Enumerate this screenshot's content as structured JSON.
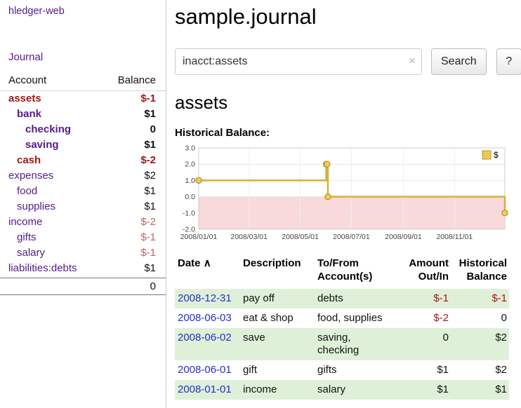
{
  "app": {
    "title": "hledger-web",
    "nav_journal": "Journal"
  },
  "sidebar": {
    "headers": {
      "account": "Account",
      "balance": "Balance"
    },
    "accounts": [
      {
        "name": "assets",
        "balance": "$-1",
        "indent": 0,
        "selected": true,
        "negative": true
      },
      {
        "name": "bank",
        "balance": "$1",
        "indent": 1,
        "selected": true,
        "negative": false
      },
      {
        "name": "checking",
        "balance": "0",
        "indent": 2,
        "selected": true,
        "negative": false
      },
      {
        "name": "saving",
        "balance": "$1",
        "indent": 2,
        "selected": true,
        "negative": false
      },
      {
        "name": "cash",
        "balance": "$-2",
        "indent": 1,
        "selected": true,
        "negative": true
      },
      {
        "name": "expenses",
        "balance": "$2",
        "indent": 0,
        "selected": false,
        "negative": false
      },
      {
        "name": "food",
        "balance": "$1",
        "indent": 1,
        "selected": false,
        "negative": false
      },
      {
        "name": "supplies",
        "balance": "$1",
        "indent": 1,
        "selected": false,
        "negative": false
      },
      {
        "name": "income",
        "balance": "$-2",
        "indent": 0,
        "selected": false,
        "negative": true
      },
      {
        "name": "gifts",
        "balance": "$-1",
        "indent": 1,
        "selected": false,
        "negative": true
      },
      {
        "name": "salary",
        "balance": "$-1",
        "indent": 1,
        "selected": false,
        "negative": true
      },
      {
        "name": "liabilities:debts",
        "balance": "$1",
        "indent": 0,
        "selected": false,
        "negative": false
      }
    ],
    "total": "0"
  },
  "main": {
    "title": "sample.journal",
    "search": {
      "value": "inacct:assets",
      "clear": "×",
      "button_label": "Search",
      "help_label": "?"
    },
    "heading": "assets",
    "chart_label": "Historical Balance:",
    "register": {
      "headers": {
        "date": "Date",
        "sort_indicator": "∧",
        "description": "Description",
        "accounts": "To/From Account(s)",
        "amount": "Amount Out/In",
        "balance": "Historical Balance"
      },
      "rows": [
        {
          "date": "2008-12-31",
          "description": "pay off",
          "accounts": "debts",
          "amount": "$-1",
          "balance": "$-1"
        },
        {
          "date": "2008-06-03",
          "description": "eat & shop",
          "accounts": "food, supplies",
          "amount": "$-2",
          "balance": "0"
        },
        {
          "date": "2008-06-02",
          "description": "save",
          "accounts": "saving, checking",
          "amount": "0",
          "balance": "$2"
        },
        {
          "date": "2008-06-01",
          "description": "gift",
          "accounts": "gifts",
          "amount": "$1",
          "balance": "$2"
        },
        {
          "date": "2008-01-01",
          "description": "income",
          "accounts": "salary",
          "amount": "$1",
          "balance": "$1"
        }
      ]
    }
  },
  "chart_data": {
    "type": "line",
    "title": "Historical Balance:",
    "step": true,
    "legend": [
      {
        "label": "$",
        "color": "#ecca52"
      }
    ],
    "legend_position": "top-right",
    "x_domain": [
      "2008-01-01",
      "2008-12-31"
    ],
    "x_ticks": [
      "2008/01/01",
      "2008/03/01",
      "2008/05/01",
      "2008/07/01",
      "2008/09/01",
      "2008/11/01"
    ],
    "ylim": [
      -2.0,
      3.0
    ],
    "y_ticks": [
      3.0,
      2.0,
      1.0,
      0.0,
      -1.0,
      -2.0
    ],
    "grid": true,
    "series": [
      {
        "name": "$",
        "points": [
          {
            "date": "2008-01-01",
            "value": 1
          },
          {
            "date": "2008-06-01",
            "value": 2
          },
          {
            "date": "2008-06-02",
            "value": 2
          },
          {
            "date": "2008-06-03",
            "value": 0
          },
          {
            "date": "2008-12-31",
            "value": -1
          }
        ]
      }
    ],
    "negative_region": {
      "from": 0,
      "to": -2,
      "color": "#f9d9d9"
    },
    "line_color": "#d6af3b",
    "marker_fill": "#f1cf5e",
    "marker_stroke": "#bf9c2c"
  },
  "colors": {
    "link_purple": "#551a8b",
    "date_link_blue": "#2230c9",
    "negative_dark_red": "#9e1616",
    "negative_light_red": "#c2635f",
    "table_negative_red": "#a51515",
    "shaded_row_green": "#dff0d8",
    "chart_gold": "#d6af3b",
    "chart_negative_pink": "#f9d9d9"
  }
}
